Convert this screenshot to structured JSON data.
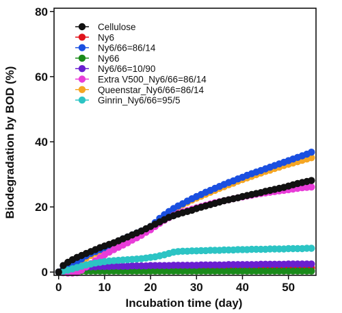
{
  "chart_data": {
    "type": "scatter",
    "xlabel": "Incubation time (day)",
    "ylabel": "Biodegradation by BOD (%)",
    "xlim": [
      -1,
      56
    ],
    "ylim": [
      -1,
      81
    ],
    "xticks": [
      0,
      10,
      20,
      30,
      40,
      50
    ],
    "yticks": [
      0,
      20,
      40,
      60,
      80
    ],
    "grid": false,
    "legend_position": "top-left",
    "series": [
      {
        "name": "Cellulose",
        "color": "#111111",
        "x": [
          0,
          1,
          2,
          3,
          4,
          5,
          6,
          7,
          8,
          9,
          10,
          11,
          12,
          13,
          14,
          15,
          16,
          17,
          18,
          19,
          20,
          21,
          22,
          23,
          24,
          25,
          26,
          27,
          28,
          29,
          30,
          31,
          32,
          33,
          34,
          35,
          36,
          37,
          38,
          39,
          40,
          41,
          42,
          43,
          44,
          45,
          46,
          47,
          48,
          49,
          50,
          51,
          52,
          53,
          54,
          55
        ],
        "y": [
          0,
          2.0,
          3.0,
          3.8,
          4.5,
          5.1,
          5.7,
          6.3,
          6.9,
          7.5,
          8.0,
          8.5,
          9.0,
          9.6,
          10.2,
          10.8,
          11.4,
          12.0,
          12.6,
          13.3,
          14.0,
          14.7,
          15.4,
          16.1,
          16.8,
          17.3,
          17.8,
          18.2,
          18.6,
          19.0,
          19.5,
          19.9,
          20.3,
          20.7,
          21.1,
          21.5,
          21.9,
          22.2,
          22.5,
          22.8,
          23.2,
          23.5,
          23.8,
          24.1,
          24.4,
          24.8,
          25.1,
          25.4,
          25.7,
          26.0,
          26.4,
          26.8,
          27.2,
          27.5,
          27.8,
          28.1
        ]
      },
      {
        "name": "Ny6",
        "color": "#e0141c",
        "x": [
          0,
          1,
          2,
          3,
          4,
          5,
          6,
          7,
          8,
          9,
          10,
          11,
          12,
          13,
          14,
          15,
          16,
          17,
          18,
          19,
          20,
          21,
          22,
          23,
          24,
          25,
          26,
          27,
          28,
          29,
          30,
          31,
          32,
          33,
          34,
          35,
          36,
          37,
          38,
          39,
          40,
          41,
          42,
          43,
          44,
          45,
          46,
          47,
          48,
          49,
          50,
          51,
          52,
          53,
          54,
          55
        ],
        "y": [
          0,
          0.4,
          0.6,
          0.7,
          0.8,
          0.8,
          0.9,
          0.9,
          1.0,
          1.0,
          1.0,
          1.0,
          1.1,
          1.1,
          1.1,
          1.1,
          1.1,
          1.1,
          1.1,
          1.2,
          1.2,
          1.2,
          1.2,
          1.2,
          1.2,
          1.2,
          1.2,
          1.2,
          1.2,
          1.3,
          1.3,
          1.3,
          1.3,
          1.3,
          1.3,
          1.3,
          1.3,
          1.3,
          1.3,
          1.3,
          1.3,
          1.3,
          1.3,
          1.3,
          1.3,
          1.3,
          1.3,
          1.3,
          1.3,
          1.3,
          1.3,
          1.3,
          1.3,
          1.3,
          1.3,
          1.3
        ]
      },
      {
        "name": "Ny6/66=86/14",
        "color": "#1a4fe0",
        "x": [
          0,
          1,
          2,
          3,
          4,
          5,
          6,
          7,
          8,
          9,
          10,
          11,
          12,
          13,
          14,
          15,
          16,
          17,
          18,
          19,
          20,
          21,
          22,
          23,
          24,
          25,
          26,
          27,
          28,
          29,
          30,
          31,
          32,
          33,
          34,
          35,
          36,
          37,
          38,
          39,
          40,
          41,
          42,
          43,
          44,
          45,
          46,
          47,
          48,
          49,
          50,
          51,
          52,
          53,
          54,
          55
        ],
        "y": [
          0,
          0.5,
          1.2,
          2.0,
          3.0,
          4.0,
          5.0,
          5.7,
          6.3,
          6.9,
          7.5,
          8.2,
          8.9,
          9.5,
          10.2,
          10.8,
          11.4,
          12.0,
          12.6,
          13.2,
          14.0,
          15.2,
          16.5,
          17.6,
          18.6,
          19.5,
          20.3,
          21.0,
          21.8,
          22.5,
          23.2,
          23.8,
          24.5,
          25.1,
          25.7,
          26.3,
          26.9,
          27.5,
          28.0,
          28.6,
          29.1,
          29.7,
          30.2,
          30.7,
          31.2,
          31.7,
          32.2,
          32.7,
          33.2,
          33.7,
          34.2,
          34.7,
          35.2,
          35.7,
          36.2,
          36.8
        ]
      },
      {
        "name": "Ny66",
        "color": "#1a8a1a",
        "x": [
          0,
          1,
          2,
          3,
          4,
          5,
          6,
          7,
          8,
          9,
          10,
          11,
          12,
          13,
          14,
          15,
          16,
          17,
          18,
          19,
          20,
          21,
          22,
          23,
          24,
          25,
          26,
          27,
          28,
          29,
          30,
          31,
          32,
          33,
          34,
          35,
          36,
          37,
          38,
          39,
          40,
          41,
          42,
          43,
          44,
          45,
          46,
          47,
          48,
          49,
          50,
          51,
          52,
          53,
          54,
          55
        ],
        "y": [
          0,
          0.2,
          0.2,
          0.3,
          0.3,
          0.3,
          0.3,
          0.3,
          0.3,
          0.3,
          0.3,
          0.3,
          0.3,
          0.3,
          0.3,
          0.3,
          0.3,
          0.3,
          0.3,
          0.3,
          0.3,
          0.3,
          0.3,
          0.3,
          0.3,
          0.3,
          0.3,
          0.3,
          0.3,
          0.3,
          0.3,
          0.3,
          0.3,
          0.3,
          0.3,
          0.3,
          0.3,
          0.3,
          0.3,
          0.3,
          0.3,
          0.3,
          0.3,
          0.3,
          0.3,
          0.3,
          0.3,
          0.3,
          0.3,
          0.3,
          0.3,
          0.3,
          0.3,
          0.3,
          0.3,
          0.3
        ]
      },
      {
        "name": "Ny6/66=10/90",
        "color": "#6a1fd0",
        "x": [
          0,
          1,
          2,
          3,
          4,
          5,
          6,
          7,
          8,
          9,
          10,
          11,
          12,
          13,
          14,
          15,
          16,
          17,
          18,
          19,
          20,
          21,
          22,
          23,
          24,
          25,
          26,
          27,
          28,
          29,
          30,
          31,
          32,
          33,
          34,
          35,
          36,
          37,
          38,
          39,
          40,
          41,
          42,
          43,
          44,
          45,
          46,
          47,
          48,
          49,
          50,
          51,
          52,
          53,
          54,
          55
        ],
        "y": [
          0,
          0.8,
          1.1,
          1.3,
          1.4,
          1.5,
          1.5,
          1.6,
          1.6,
          1.7,
          1.7,
          1.7,
          1.8,
          1.8,
          1.8,
          1.8,
          1.9,
          1.9,
          1.9,
          1.9,
          2.0,
          2.0,
          2.0,
          2.0,
          2.0,
          2.1,
          2.1,
          2.1,
          2.1,
          2.1,
          2.1,
          2.2,
          2.2,
          2.2,
          2.2,
          2.2,
          2.2,
          2.3,
          2.3,
          2.3,
          2.3,
          2.3,
          2.3,
          2.3,
          2.4,
          2.4,
          2.4,
          2.4,
          2.4,
          2.4,
          2.5,
          2.5,
          2.5,
          2.5,
          2.5,
          2.5
        ]
      },
      {
        "name": "Extra V500_Ny6/66=86/14",
        "color": "#e83cd8",
        "x": [
          0,
          1,
          2,
          3,
          4,
          5,
          6,
          7,
          8,
          9,
          10,
          11,
          12,
          13,
          14,
          15,
          16,
          17,
          18,
          19,
          20,
          21,
          22,
          23,
          24,
          25,
          26,
          27,
          28,
          29,
          30,
          31,
          32,
          33,
          34,
          35,
          36,
          37,
          38,
          39,
          40,
          41,
          42,
          43,
          44,
          45,
          46,
          47,
          48,
          49,
          50,
          51,
          52,
          53,
          54,
          55
        ],
        "y": [
          0,
          -0.2,
          -0.3,
          -0.3,
          -0.2,
          0.6,
          1.6,
          2.6,
          3.5,
          4.4,
          5.3,
          6.1,
          6.9,
          7.6,
          8.3,
          9.0,
          9.8,
          10.5,
          11.3,
          12.2,
          13.0,
          14.0,
          15.0,
          15.9,
          16.7,
          17.4,
          18.0,
          18.5,
          18.9,
          19.3,
          19.7,
          20.1,
          20.5,
          20.9,
          21.3,
          21.6,
          21.9,
          22.2,
          22.5,
          22.8,
          23.1,
          23.4,
          23.6,
          23.9,
          24.1,
          24.3,
          24.5,
          24.7,
          24.9,
          25.1,
          25.3,
          25.5,
          25.7,
          25.9,
          26.0,
          26.1
        ]
      },
      {
        "name": "Queenstar_Ny6/66=86/14",
        "color": "#f5a623",
        "x": [
          0,
          1,
          2,
          3,
          4,
          5,
          6,
          7,
          8,
          9,
          10,
          11,
          12,
          13,
          14,
          15,
          16,
          17,
          18,
          19,
          20,
          21,
          22,
          23,
          24,
          25,
          26,
          27,
          28,
          29,
          30,
          31,
          32,
          33,
          34,
          35,
          36,
          37,
          38,
          39,
          40,
          41,
          42,
          43,
          44,
          45,
          46,
          47,
          48,
          49,
          50,
          51,
          52,
          53,
          54,
          55
        ],
        "y": [
          0,
          0.3,
          0.8,
          1.5,
          2.4,
          3.4,
          4.3,
          5.1,
          5.8,
          6.5,
          7.2,
          7.9,
          8.6,
          9.2,
          9.9,
          10.5,
          11.1,
          11.8,
          12.4,
          13.0,
          13.8,
          15.0,
          16.2,
          17.3,
          18.3,
          19.2,
          20.0,
          20.7,
          21.4,
          22.1,
          22.7,
          23.3,
          23.9,
          24.5,
          25.1,
          25.7,
          26.2,
          26.8,
          27.3,
          27.9,
          28.4,
          28.9,
          29.4,
          29.9,
          30.4,
          30.9,
          31.3,
          31.8,
          32.2,
          32.7,
          33.1,
          33.5,
          33.9,
          34.3,
          34.7,
          35.1
        ]
      },
      {
        "name": "Ginrin_Ny6/66=95/5",
        "color": "#2cc4c4",
        "x": [
          0,
          1,
          2,
          3,
          4,
          5,
          6,
          7,
          8,
          9,
          10,
          11,
          12,
          13,
          14,
          15,
          16,
          17,
          18,
          19,
          20,
          21,
          22,
          23,
          24,
          25,
          26,
          27,
          28,
          29,
          30,
          31,
          32,
          33,
          34,
          35,
          36,
          37,
          38,
          39,
          40,
          41,
          42,
          43,
          44,
          45,
          46,
          47,
          48,
          49,
          50,
          51,
          52,
          53,
          54,
          55
        ],
        "y": [
          0,
          0.3,
          0.6,
          1.0,
          1.4,
          1.8,
          2.2,
          2.5,
          2.8,
          3.0,
          3.2,
          3.4,
          3.5,
          3.6,
          3.7,
          3.8,
          3.9,
          4.0,
          4.1,
          4.3,
          4.5,
          4.7,
          5.0,
          5.3,
          5.7,
          6.1,
          6.3,
          6.4,
          6.4,
          6.5,
          6.5,
          6.6,
          6.6,
          6.7,
          6.7,
          6.7,
          6.8,
          6.8,
          6.8,
          6.9,
          6.9,
          6.9,
          7.0,
          7.0,
          7.0,
          7.0,
          7.1,
          7.1,
          7.1,
          7.1,
          7.2,
          7.2,
          7.2,
          7.2,
          7.3,
          7.3
        ]
      }
    ]
  }
}
